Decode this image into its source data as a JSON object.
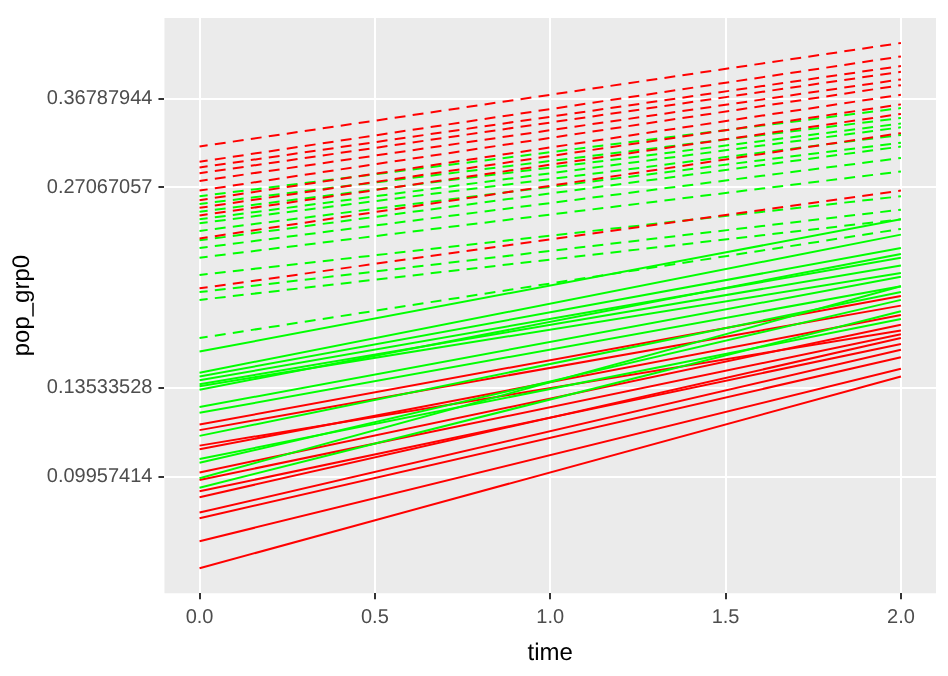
{
  "chart_data": {
    "type": "line",
    "xlabel": "time",
    "ylabel": "pop_grp0",
    "x": [
      0,
      2
    ],
    "xlim": [
      -0.1,
      2.1
    ],
    "xticks": [
      {
        "value": 0,
        "label": "0.0"
      },
      {
        "value": 0.5,
        "label": "0.5"
      },
      {
        "value": 1,
        "label": "1.0"
      },
      {
        "value": 1.5,
        "label": "1.5"
      },
      {
        "value": 2,
        "label": "2.0"
      }
    ],
    "ylim": [
      0.0666,
      0.486
    ],
    "yticks": [
      0.09957414,
      0.13533528,
      0.27067057,
      0.36787944
    ],
    "log": "y",
    "grid": true,
    "marker": "none",
    "series": [
      {
        "color": "#ff0000",
        "line_style": "dashed",
        "values": [
          0.3117,
          0.4458
        ]
      },
      {
        "color": "#ff0000",
        "line_style": "dashed",
        "values": [
          0.2957,
          0.4256
        ]
      },
      {
        "color": "#ff0000",
        "line_style": "dashed",
        "values": [
          0.2899,
          0.4117
        ]
      },
      {
        "color": "#ff0000",
        "line_style": "dashed",
        "values": [
          0.2842,
          0.4036
        ]
      },
      {
        "color": "#ff0000",
        "line_style": "dashed",
        "values": [
          0.2767,
          0.3931
        ]
      },
      {
        "color": "#ff0000",
        "line_style": "dashed",
        "values": [
          0.2677,
          0.3853
        ]
      },
      {
        "color": "#ff0000",
        "line_style": "dashed",
        "values": [
          0.259,
          0.3728
        ]
      },
      {
        "color": "#ff0000",
        "line_style": "dashed",
        "values": [
          0.2522,
          0.3606
        ]
      },
      {
        "color": "#ff0000",
        "line_style": "dashed",
        "values": [
          0.2456,
          0.3489
        ]
      },
      {
        "color": "#ff0000",
        "line_style": "dashed",
        "values": [
          0.2269,
          0.3265
        ]
      },
      {
        "color": "#ff0000",
        "line_style": "dashed",
        "values": [
          0.191,
          0.2677
        ]
      },
      {
        "color": "#00ff00",
        "line_style": "dashed",
        "values": [
          0.2625,
          0.356
        ]
      },
      {
        "color": "#00ff00",
        "line_style": "dashed",
        "values": [
          0.2556,
          0.344
        ]
      },
      {
        "color": "#00ff00",
        "line_style": "dashed",
        "values": [
          0.2489,
          0.3375
        ]
      },
      {
        "color": "#00ff00",
        "line_style": "dashed",
        "values": [
          0.2424,
          0.3331
        ]
      },
      {
        "color": "#00ff00",
        "line_style": "dashed",
        "values": [
          0.2392,
          0.3244
        ]
      },
      {
        "color": "#00ff00",
        "line_style": "dashed",
        "values": [
          0.2329,
          0.3159
        ]
      },
      {
        "color": "#00ff00",
        "line_style": "dashed",
        "values": [
          0.2254,
          0.3117
        ]
      },
      {
        "color": "#00ff00",
        "line_style": "dashed",
        "values": [
          0.2195,
          0.2996
        ]
      },
      {
        "color": "#00ff00",
        "line_style": "dashed",
        "values": [
          0.2123,
          0.286
        ]
      },
      {
        "color": "#00ff00",
        "line_style": "dashed",
        "values": [
          0.2,
          0.2625
        ]
      },
      {
        "color": "#00ff00",
        "line_style": "dashed",
        "values": [
          0.1885,
          0.2506
        ]
      },
      {
        "color": "#00ff00",
        "line_style": "dashed",
        "values": [
          0.1835,
          0.2424
        ]
      },
      {
        "color": "#00ff00",
        "line_style": "dashed",
        "values": [
          0.1608,
          0.2345
        ]
      },
      {
        "color": "#00ff00",
        "line_style": "solid",
        "values": [
          0.1535,
          0.2424
        ]
      },
      {
        "color": "#00ff00",
        "line_style": "solid",
        "values": [
          0.1427,
          0.2299
        ]
      },
      {
        "color": "#00ff00",
        "line_style": "solid",
        "values": [
          0.1408,
          0.2195
        ]
      },
      {
        "color": "#00ff00",
        "line_style": "solid",
        "values": [
          0.139,
          0.2123
        ]
      },
      {
        "color": "#00ff00",
        "line_style": "solid",
        "values": [
          0.1371,
          0.2067
        ]
      },
      {
        "color": "#00ff00",
        "line_style": "solid",
        "values": [
          0.1362,
          0.2013
        ]
      },
      {
        "color": "#00ff00",
        "line_style": "solid",
        "values": [
          0.1345,
          0.2151
        ]
      },
      {
        "color": "#00ff00",
        "line_style": "solid",
        "values": [
          0.1267,
          0.1987
        ]
      },
      {
        "color": "#00ff00",
        "line_style": "solid",
        "values": [
          0.1242,
          0.1923
        ]
      },
      {
        "color": "#00ff00",
        "line_style": "solid",
        "values": [
          0.1147,
          0.1885
        ]
      },
      {
        "color": "#00ff00",
        "line_style": "solid",
        "values": [
          0.1045,
          0.1835
        ]
      },
      {
        "color": "#00ff00",
        "line_style": "solid",
        "values": [
          0.0959,
          0.1764
        ]
      },
      {
        "color": "#00ff00",
        "line_style": "solid",
        "values": [
          0.1059,
          0.1718
        ]
      },
      {
        "color": "#00ff00",
        "line_style": "solid",
        "values": [
          0.0991,
          0.1923
        ]
      },
      {
        "color": "#ff0000",
        "line_style": "solid",
        "values": [
          0.1193,
          0.186
        ]
      },
      {
        "color": "#ff0000",
        "line_style": "solid",
        "values": [
          0.117,
          0.1799
        ]
      },
      {
        "color": "#ff0000",
        "line_style": "solid",
        "values": [
          0.1095,
          0.1741
        ]
      },
      {
        "color": "#ff0000",
        "line_style": "solid",
        "values": [
          0.1011,
          0.1684
        ]
      },
      {
        "color": "#ff0000",
        "line_style": "solid",
        "values": [
          0.0985,
          0.1629
        ]
      },
      {
        "color": "#ff0000",
        "line_style": "solid",
        "values": [
          0.0928,
          0.1608
        ]
      },
      {
        "color": "#ff0000",
        "line_style": "solid",
        "values": [
          0.088,
          0.1545
        ]
      },
      {
        "color": "#ff0000",
        "line_style": "solid",
        "values": [
          0.0863,
          0.1505
        ]
      },
      {
        "color": "#ff0000",
        "line_style": "solid",
        "values": [
          0.0797,
          0.1446
        ]
      },
      {
        "color": "#ff0000",
        "line_style": "solid",
        "values": [
          0.0726,
          0.1408
        ]
      },
      {
        "color": "#ff0000",
        "line_style": "solid",
        "values": [
          0.1109,
          0.1651
        ]
      },
      {
        "color": "#ff0000",
        "line_style": "solid",
        "values": [
          0.0947,
          0.1576
        ]
      }
    ]
  }
}
